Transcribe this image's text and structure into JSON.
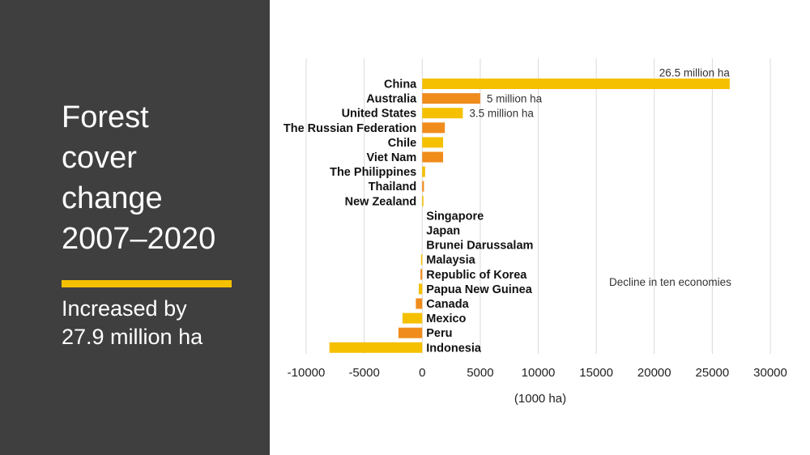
{
  "slide": {
    "title_lines": [
      "Forest",
      "cover",
      "change",
      "2007–2020"
    ],
    "subtitle_lines": [
      "Increased by",
      "27.9 million ha"
    ],
    "accent_color": "#f5c000",
    "panel_color": "#3f3f3f"
  },
  "chart_data": {
    "type": "bar",
    "orientation": "horizontal",
    "categories": [
      "China",
      "Australia",
      "United States",
      "The Russian Federation",
      "Chile",
      "Viet Nam",
      "The Philippines",
      "Thailand",
      "New Zealand",
      "Singapore",
      "Japan",
      "Brunei Darussalam",
      "Malaysia",
      "Republic of Korea",
      "Papua New Guinea",
      "Canada",
      "Mexico",
      "Peru",
      "Indonesia"
    ],
    "values": [
      26500,
      5000,
      3500,
      1950,
      1800,
      1800,
      250,
      150,
      80,
      0,
      0,
      0,
      -100,
      -150,
      -300,
      -550,
      -1700,
      -2050,
      -8000
    ],
    "colors": [
      "#f5c000",
      "#f08c1c",
      "#f5c000",
      "#f08c1c",
      "#f5c000",
      "#f08c1c",
      "#f5c000",
      "#f08c1c",
      "#f5c000",
      "#f08c1c",
      "#f5c000",
      "#f08c1c",
      "#f5c000",
      "#f08c1c",
      "#f5c000",
      "#f08c1c",
      "#f5c000",
      "#f08c1c",
      "#f5c000"
    ],
    "xlabel": "(1000 ha)",
    "xlim": [
      -10000,
      30000
    ],
    "xticks": [
      -10000,
      -5000,
      0,
      5000,
      10000,
      15000,
      20000,
      25000,
      30000
    ],
    "grid": "vertical",
    "annotations": [
      {
        "category": "China",
        "text": "26.5 million ha"
      },
      {
        "category": "Australia",
        "text": "5 million ha"
      },
      {
        "category": "United States",
        "text": "3.5 million ha"
      },
      {
        "category": "Papua New Guinea",
        "text": "Decline in ten economies"
      }
    ]
  }
}
